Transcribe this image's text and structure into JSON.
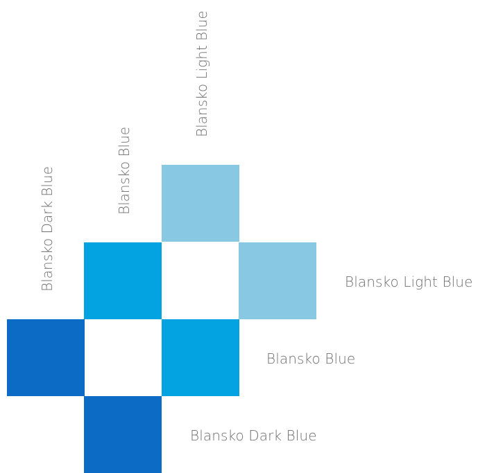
{
  "colors": {
    "dark_blue": "#0b6bc5",
    "blue": "#03a3e1",
    "light_blue": "#89c8e3"
  },
  "labels": {
    "top_light_blue": "Blansko Light Blue",
    "top_blue": "Blansko Blue",
    "top_dark_blue": "Blansko Dark Blue",
    "right_light_blue": "Blansko Light Blue",
    "right_blue": "Blansko Blue",
    "right_dark_blue": "Blansko Dark Blue"
  }
}
